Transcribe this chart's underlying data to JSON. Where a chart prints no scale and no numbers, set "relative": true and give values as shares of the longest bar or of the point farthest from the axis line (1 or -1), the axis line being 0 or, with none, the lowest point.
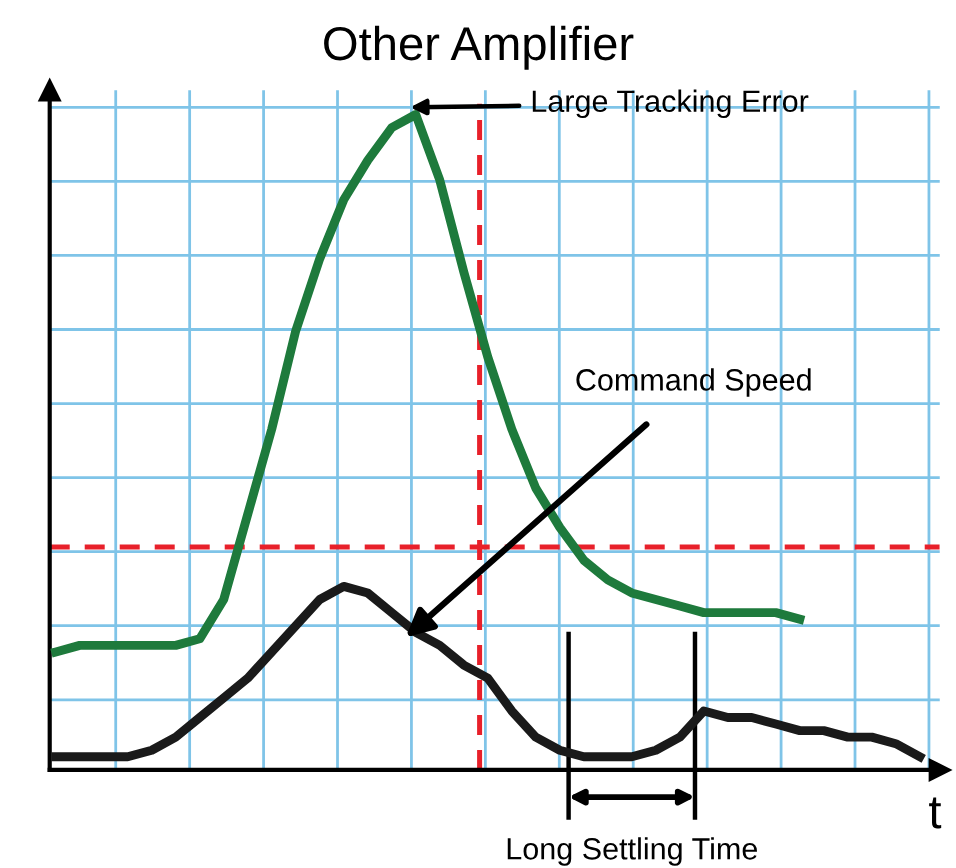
{
  "chart_data": {
    "type": "line",
    "title": "Other Amplifier",
    "xlabel": "t",
    "relative": true,
    "categories": [
      null,
      null,
      null,
      null,
      null,
      null,
      null,
      null,
      null,
      null,
      null,
      null,
      null,
      null,
      null,
      null,
      null,
      null,
      null,
      null,
      null,
      null,
      null,
      null,
      null,
      null,
      null,
      null,
      null,
      null,
      null,
      null,
      null,
      null,
      null,
      null,
      null
    ],
    "series": [
      {
        "color": "#1e7a3c",
        "values": [
          0.18,
          0.19,
          0.19,
          0.19,
          0.19,
          0.19,
          0.2,
          0.26,
          0.39,
          0.52,
          0.67,
          0.78,
          0.87,
          0.93,
          0.98,
          1,
          0.9,
          0.76,
          0.63,
          0.52,
          0.43,
          0.37,
          0.32,
          0.29,
          0.27,
          0.26,
          0.25,
          0.24,
          0.24,
          0.24,
          0.24,
          0.23,
          null,
          null,
          null,
          null,
          null
        ]
      },
      {
        "color": "#1a1a1a",
        "values": [
          0.02,
          0.02,
          0.02,
          0.02,
          0.03,
          0.05,
          0.08,
          0.11,
          0.14,
          0.18,
          0.22,
          0.26,
          0.28,
          0.27,
          0.24,
          0.21,
          0.19,
          0.16,
          0.14,
          0.09,
          0.05,
          0.03,
          0.02,
          0.02,
          0.02,
          0.03,
          0.05,
          0.09,
          0.08,
          0.08,
          0.07,
          0.06,
          0.06,
          0.05,
          0.05,
          0.04,
          0.02
        ]
      }
    ],
    "ref_lines": [
      {
        "axis": "y",
        "value": 0.34,
        "color": "#e8202a",
        "line_style": "dashed"
      }
    ],
    "annotations": [
      "Large Tracking Error",
      "Command Speed",
      "Long Settling Time"
    ],
    "grid": true,
    "marker": "none",
    "line_style": "solid",
    "legend": false
  }
}
